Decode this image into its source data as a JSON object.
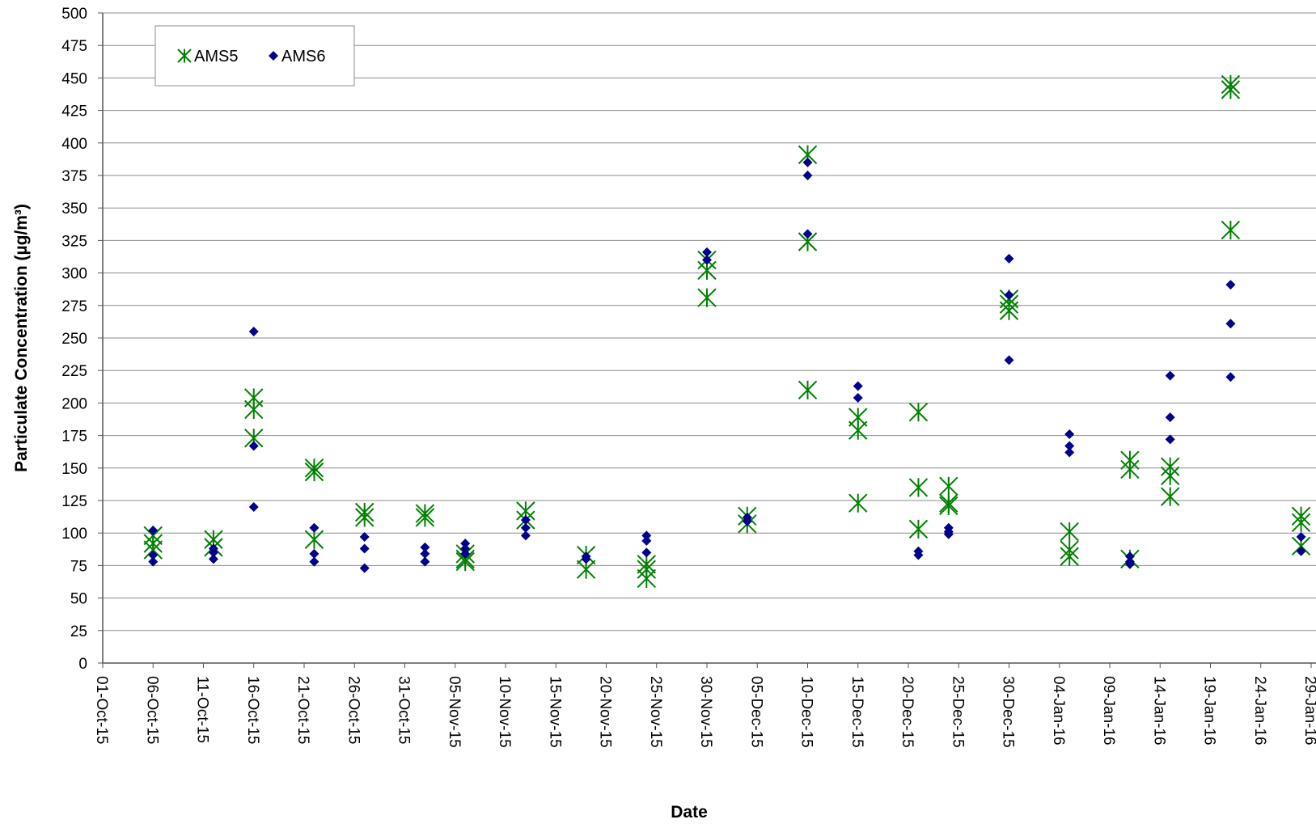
{
  "chart_data": {
    "type": "scatter",
    "title": "",
    "xlabel": "Date",
    "ylabel": "Particulate Concentration (µg/m³)",
    "ylim": [
      0,
      500
    ],
    "yticks": [
      0,
      25,
      50,
      75,
      100,
      125,
      150,
      175,
      200,
      225,
      250,
      275,
      300,
      325,
      350,
      375,
      400,
      425,
      450,
      475,
      500
    ],
    "xlim": [
      "2015-10-01",
      "2016-01-29"
    ],
    "xtick_labels": [
      "01-Oct-15",
      "06-Oct-15",
      "11-Oct-15",
      "16-Oct-15",
      "21-Oct-15",
      "26-Oct-15",
      "31-Oct-15",
      "05-Nov-15",
      "10-Nov-15",
      "15-Nov-15",
      "20-Nov-15",
      "25-Nov-15",
      "30-Nov-15",
      "05-Dec-15",
      "10-Dec-15",
      "15-Dec-15",
      "20-Dec-15",
      "25-Dec-15",
      "30-Dec-15",
      "04-Jan-16",
      "09-Jan-16",
      "14-Jan-16",
      "19-Jan-16",
      "24-Jan-16",
      "29-Jan-16"
    ],
    "grid": "horizontal",
    "legend_position": "top-left",
    "series": [
      {
        "name": "AMS5",
        "marker": "star",
        "color": "#008000",
        "points": [
          {
            "x": "2015-10-06",
            "y": 98
          },
          {
            "x": "2015-10-06",
            "y": 92
          },
          {
            "x": "2015-10-06",
            "y": 87
          },
          {
            "x": "2015-10-12",
            "y": 95
          },
          {
            "x": "2015-10-12",
            "y": 89
          },
          {
            "x": "2015-10-16",
            "y": 204
          },
          {
            "x": "2015-10-16",
            "y": 195
          },
          {
            "x": "2015-10-16",
            "y": 173
          },
          {
            "x": "2015-10-22",
            "y": 150
          },
          {
            "x": "2015-10-22",
            "y": 147
          },
          {
            "x": "2015-10-22",
            "y": 95
          },
          {
            "x": "2015-10-27",
            "y": 116
          },
          {
            "x": "2015-10-27",
            "y": 112
          },
          {
            "x": "2015-11-02",
            "y": 115
          },
          {
            "x": "2015-11-02",
            "y": 112
          },
          {
            "x": "2015-11-06",
            "y": 84
          },
          {
            "x": "2015-11-06",
            "y": 80
          },
          {
            "x": "2015-11-06",
            "y": 78
          },
          {
            "x": "2015-11-12",
            "y": 117
          },
          {
            "x": "2015-11-12",
            "y": 110
          },
          {
            "x": "2015-11-18",
            "y": 83
          },
          {
            "x": "2015-11-18",
            "y": 72
          },
          {
            "x": "2015-11-24",
            "y": 76
          },
          {
            "x": "2015-11-24",
            "y": 72
          },
          {
            "x": "2015-11-24",
            "y": 65
          },
          {
            "x": "2015-11-30",
            "y": 310
          },
          {
            "x": "2015-11-30",
            "y": 302
          },
          {
            "x": "2015-11-30",
            "y": 281
          },
          {
            "x": "2015-12-04",
            "y": 113
          },
          {
            "x": "2015-12-04",
            "y": 107
          },
          {
            "x": "2015-12-10",
            "y": 391
          },
          {
            "x": "2015-12-10",
            "y": 324
          },
          {
            "x": "2015-12-10",
            "y": 210
          },
          {
            "x": "2015-12-15",
            "y": 189
          },
          {
            "x": "2015-12-15",
            "y": 179
          },
          {
            "x": "2015-12-15",
            "y": 123
          },
          {
            "x": "2015-12-21",
            "y": 193
          },
          {
            "x": "2015-12-21",
            "y": 135
          },
          {
            "x": "2015-12-21",
            "y": 103
          },
          {
            "x": "2015-12-24",
            "y": 136
          },
          {
            "x": "2015-12-24",
            "y": 123
          },
          {
            "x": "2015-12-24",
            "y": 121
          },
          {
            "x": "2015-12-30",
            "y": 280
          },
          {
            "x": "2015-12-30",
            "y": 276
          },
          {
            "x": "2015-12-30",
            "y": 271
          },
          {
            "x": "2016-01-05",
            "y": 101
          },
          {
            "x": "2016-01-05",
            "y": 87
          },
          {
            "x": "2016-01-05",
            "y": 82
          },
          {
            "x": "2016-01-11",
            "y": 156
          },
          {
            "x": "2016-01-11",
            "y": 149
          },
          {
            "x": "2016-01-11",
            "y": 80
          },
          {
            "x": "2016-01-15",
            "y": 151
          },
          {
            "x": "2016-01-15",
            "y": 144
          },
          {
            "x": "2016-01-15",
            "y": 128
          },
          {
            "x": "2016-01-21",
            "y": 445
          },
          {
            "x": "2016-01-21",
            "y": 441
          },
          {
            "x": "2016-01-21",
            "y": 333
          },
          {
            "x": "2016-01-28",
            "y": 113
          },
          {
            "x": "2016-01-28",
            "y": 108
          },
          {
            "x": "2016-01-28",
            "y": 90
          }
        ]
      },
      {
        "name": "AMS6",
        "marker": "diamond",
        "color": "#00008B",
        "points": [
          {
            "x": "2015-10-06",
            "y": 102
          },
          {
            "x": "2015-10-06",
            "y": 83
          },
          {
            "x": "2015-10-06",
            "y": 78
          },
          {
            "x": "2015-10-12",
            "y": 88
          },
          {
            "x": "2015-10-12",
            "y": 85
          },
          {
            "x": "2015-10-12",
            "y": 80
          },
          {
            "x": "2015-10-16",
            "y": 255
          },
          {
            "x": "2015-10-16",
            "y": 167
          },
          {
            "x": "2015-10-16",
            "y": 120
          },
          {
            "x": "2015-10-22",
            "y": 104
          },
          {
            "x": "2015-10-22",
            "y": 84
          },
          {
            "x": "2015-10-22",
            "y": 78
          },
          {
            "x": "2015-10-27",
            "y": 97
          },
          {
            "x": "2015-10-27",
            "y": 88
          },
          {
            "x": "2015-10-27",
            "y": 73
          },
          {
            "x": "2015-11-02",
            "y": 89
          },
          {
            "x": "2015-11-02",
            "y": 84
          },
          {
            "x": "2015-11-02",
            "y": 78
          },
          {
            "x": "2015-11-06",
            "y": 92
          },
          {
            "x": "2015-11-06",
            "y": 88
          },
          {
            "x": "2015-11-06",
            "y": 84
          },
          {
            "x": "2015-11-12",
            "y": 110
          },
          {
            "x": "2015-11-12",
            "y": 104
          },
          {
            "x": "2015-11-12",
            "y": 98
          },
          {
            "x": "2015-11-18",
            "y": 82
          },
          {
            "x": "2015-11-18",
            "y": 80
          },
          {
            "x": "2015-11-24",
            "y": 98
          },
          {
            "x": "2015-11-24",
            "y": 94
          },
          {
            "x": "2015-11-24",
            "y": 85
          },
          {
            "x": "2015-11-30",
            "y": 316
          },
          {
            "x": "2015-11-30",
            "y": 310
          },
          {
            "x": "2015-12-04",
            "y": 112
          },
          {
            "x": "2015-12-04",
            "y": 109
          },
          {
            "x": "2015-12-10",
            "y": 385
          },
          {
            "x": "2015-12-10",
            "y": 375
          },
          {
            "x": "2015-12-10",
            "y": 330
          },
          {
            "x": "2015-12-15",
            "y": 213
          },
          {
            "x": "2015-12-15",
            "y": 204
          },
          {
            "x": "2015-12-21",
            "y": 86
          },
          {
            "x": "2015-12-21",
            "y": 83
          },
          {
            "x": "2015-12-24",
            "y": 104
          },
          {
            "x": "2015-12-24",
            "y": 101
          },
          {
            "x": "2015-12-24",
            "y": 99
          },
          {
            "x": "2015-12-30",
            "y": 311
          },
          {
            "x": "2015-12-30",
            "y": 283
          },
          {
            "x": "2015-12-30",
            "y": 233
          },
          {
            "x": "2016-01-05",
            "y": 176
          },
          {
            "x": "2016-01-05",
            "y": 167
          },
          {
            "x": "2016-01-05",
            "y": 162
          },
          {
            "x": "2016-01-11",
            "y": 82
          },
          {
            "x": "2016-01-11",
            "y": 78
          },
          {
            "x": "2016-01-11",
            "y": 76
          },
          {
            "x": "2016-01-15",
            "y": 221
          },
          {
            "x": "2016-01-15",
            "y": 189
          },
          {
            "x": "2016-01-15",
            "y": 172
          },
          {
            "x": "2016-01-21",
            "y": 291
          },
          {
            "x": "2016-01-21",
            "y": 261
          },
          {
            "x": "2016-01-21",
            "y": 220
          },
          {
            "x": "2016-01-28",
            "y": 97
          },
          {
            "x": "2016-01-28",
            "y": 86
          }
        ]
      }
    ]
  }
}
